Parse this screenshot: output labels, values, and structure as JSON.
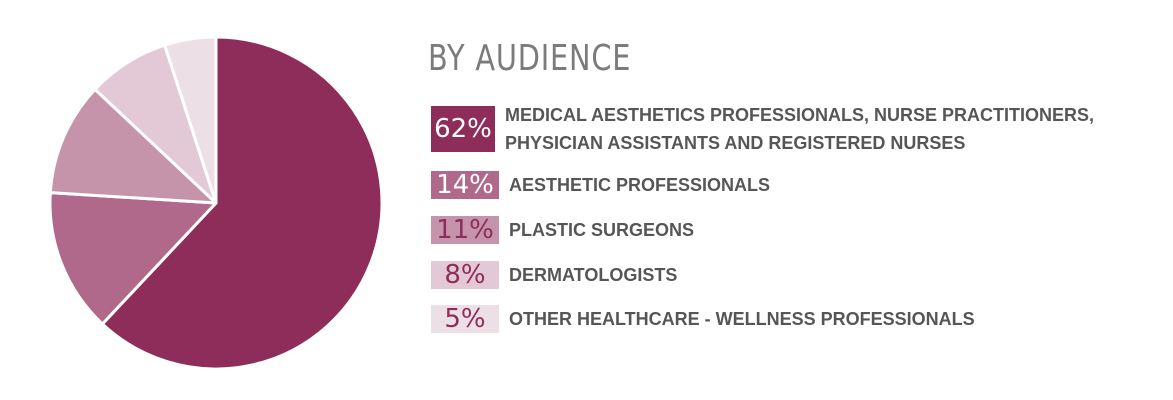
{
  "chart_data": {
    "type": "pie",
    "title": "BY AUDIENCE",
    "start_angle_deg": 0,
    "direction": "clockwise",
    "slices": [
      {
        "percent_label": "62%",
        "value": 62,
        "label": "MEDICAL AESTHETICS PROFESSIONALS, NURSE PRACTITIONERS,\nPHYSICIAN ASSISTANTS AND REGISTERED NURSES",
        "color": "#8e2d5a",
        "badge_text_color": "#ffffff"
      },
      {
        "percent_label": "14%",
        "value": 14,
        "label": "AESTHETIC PROFESSIONALS",
        "color": "#b0698b",
        "badge_text_color": "#ffffff"
      },
      {
        "percent_label": "11%",
        "value": 11,
        "label": "PLASTIC SURGEONS",
        "color": "#c594ab",
        "badge_text_color": "#8e2d5a"
      },
      {
        "percent_label": "8%",
        "value": 8,
        "label": "DERMATOLOGISTS",
        "color": "#e3c9d6",
        "badge_text_color": "#8e2d5a"
      },
      {
        "percent_label": "5%",
        "value": 5,
        "label": "OTHER HEALTHCARE - WELLNESS PROFESSIONALS",
        "color": "#eddfe6",
        "badge_text_color": "#8e2d5a"
      }
    ]
  }
}
